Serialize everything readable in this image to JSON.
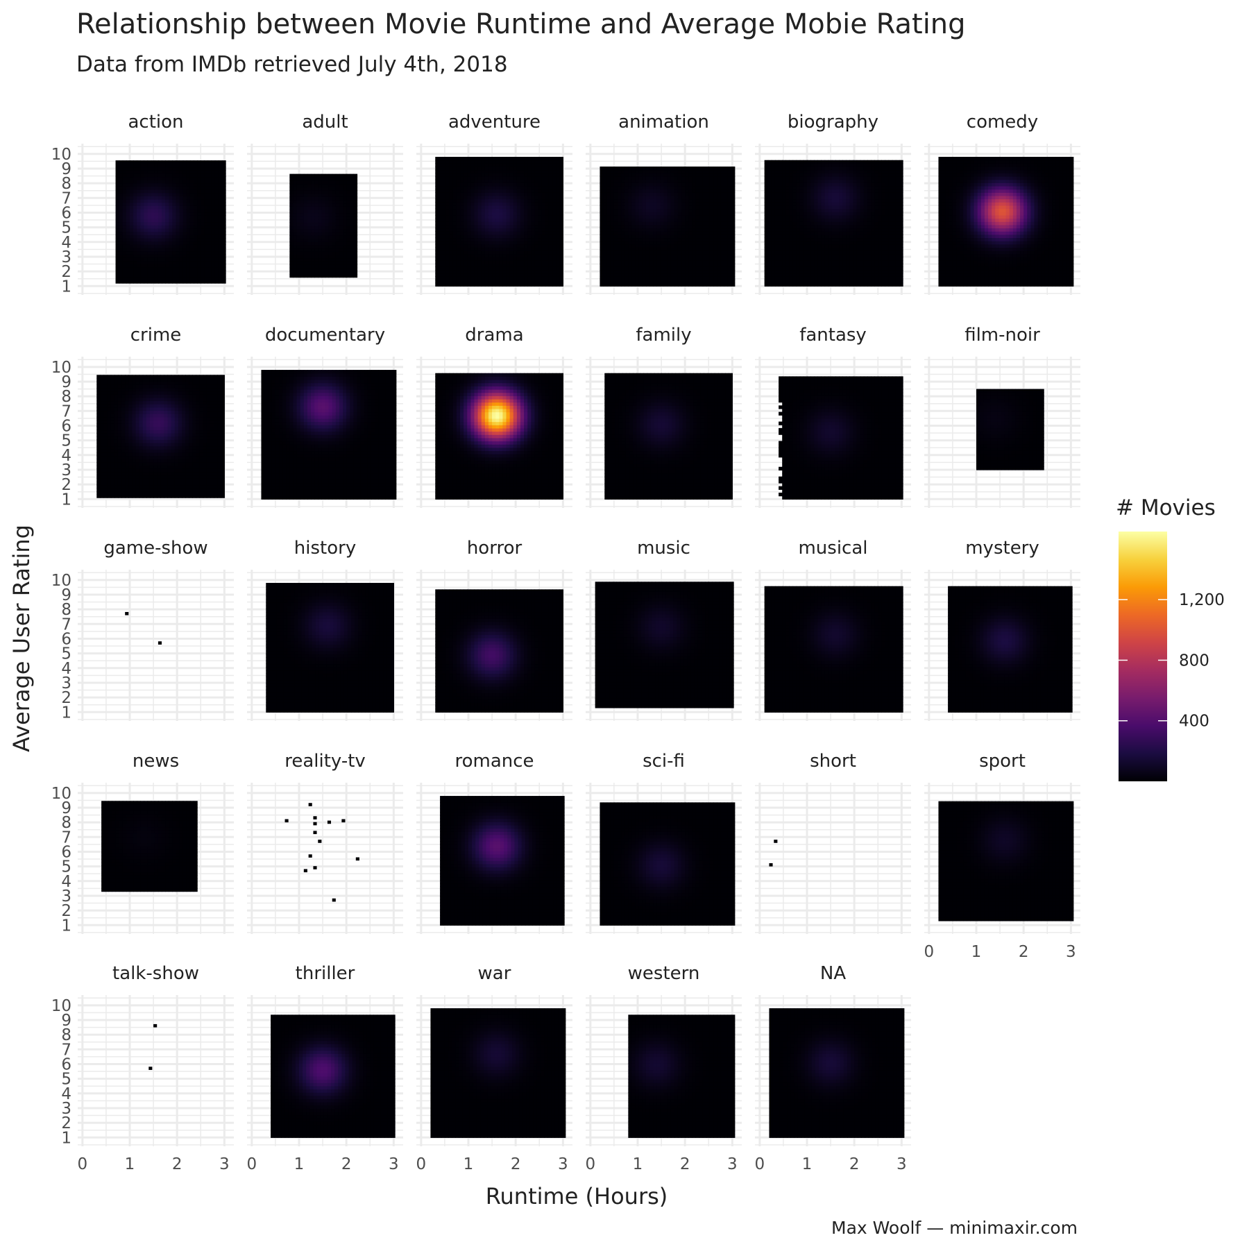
{
  "chart_data": {
    "type": "heatmap",
    "title": "Relationship between Movie Runtime and Average Mobie Rating",
    "subtitle": "Data from IMDb retrieved July 4th, 2018",
    "xlabel": "Runtime (Hours)",
    "ylabel": "Average User Rating",
    "caption": "Max Woolf — minimaxir.com",
    "x_ticks": [
      "0",
      "1",
      "2",
      "3"
    ],
    "y_ticks": [
      "1",
      "2",
      "3",
      "4",
      "5",
      "6",
      "7",
      "8",
      "9",
      "10"
    ],
    "xlim": [
      0,
      3.1
    ],
    "ylim": [
      0.8,
      10.3
    ],
    "legend": {
      "title": "# Movies",
      "ticks": [
        "400",
        "800",
        "1,200"
      ],
      "tick_values": [
        400,
        800,
        1200
      ],
      "range": [
        0,
        1650
      ],
      "position": "right"
    },
    "colors": [
      "#000004",
      "#1b0c41",
      "#4a0c6b",
      "#781c6d",
      "#a52c60",
      "#cf4446",
      "#ed6925",
      "#fb9b06",
      "#f7d13d",
      "#fcffa4"
    ],
    "facets": [
      {
        "name": "action",
        "x": [
          0.7,
          3.0
        ],
        "y": [
          1.2,
          9.4
        ],
        "peak": 250,
        "peak_x": 1.5,
        "peak_y": 5.8,
        "density": 0.95
      },
      {
        "name": "adult",
        "x": [
          0.8,
          2.2
        ],
        "y": [
          1.6,
          8.6
        ],
        "peak": 60,
        "peak_x": 1.3,
        "peak_y": 5.7,
        "density": 0.7
      },
      {
        "name": "adventure",
        "x": [
          0.3,
          3.0
        ],
        "y": [
          1.0,
          9.6
        ],
        "peak": 180,
        "peak_x": 1.6,
        "peak_y": 5.9,
        "density": 0.9
      },
      {
        "name": "animation",
        "x": [
          0.2,
          3.0
        ],
        "y": [
          1.0,
          9.0
        ],
        "peak": 90,
        "peak_x": 1.3,
        "peak_y": 6.5,
        "density": 0.72
      },
      {
        "name": "biography",
        "x": [
          0.1,
          3.0
        ],
        "y": [
          1.0,
          9.5
        ],
        "peak": 150,
        "peak_x": 1.6,
        "peak_y": 7.0,
        "density": 0.85
      },
      {
        "name": "comedy",
        "x": [
          0.2,
          3.0
        ],
        "y": [
          1.0,
          9.6
        ],
        "peak": 1000,
        "peak_x": 1.55,
        "peak_y": 6.1,
        "density": 0.95
      },
      {
        "name": "crime",
        "x": [
          0.3,
          3.0
        ],
        "y": [
          1.1,
          9.3
        ],
        "peak": 280,
        "peak_x": 1.6,
        "peak_y": 6.2,
        "density": 0.93
      },
      {
        "name": "documentary",
        "x": [
          0.2,
          3.0
        ],
        "y": [
          1.0,
          9.8
        ],
        "peak": 420,
        "peak_x": 1.5,
        "peak_y": 7.3,
        "density": 0.88
      },
      {
        "name": "drama",
        "x": [
          0.3,
          3.0
        ],
        "y": [
          1.0,
          9.5
        ],
        "peak": 1650,
        "peak_x": 1.6,
        "peak_y": 6.7,
        "density": 0.97
      },
      {
        "name": "family",
        "x": [
          0.3,
          3.0
        ],
        "y": [
          1.0,
          9.4
        ],
        "peak": 140,
        "peak_x": 1.5,
        "peak_y": 6.1,
        "density": 0.85
      },
      {
        "name": "fantasy",
        "x": [
          0.4,
          3.0
        ],
        "y": [
          1.0,
          9.3
        ],
        "peak": 120,
        "peak_x": 1.5,
        "peak_y": 5.6,
        "density": 0.82
      },
      {
        "name": "film-noir",
        "x": [
          1.0,
          2.4
        ],
        "y": [
          3.0,
          8.4
        ],
        "peak": 40,
        "peak_x": 1.4,
        "peak_y": 6.5,
        "density": 0.85
      },
      {
        "name": "game-show",
        "x": [
          0.9,
          1.7
        ],
        "y": [
          5.4,
          7.6
        ],
        "peak": 2,
        "peak_x": 1.2,
        "peak_y": 6.5,
        "density": 0.0
      },
      {
        "name": "history",
        "x": [
          0.3,
          3.0
        ],
        "y": [
          1.0,
          9.7
        ],
        "peak": 160,
        "peak_x": 1.6,
        "peak_y": 6.9,
        "density": 0.85
      },
      {
        "name": "horror",
        "x": [
          0.3,
          3.0
        ],
        "y": [
          1.0,
          9.2
        ],
        "peak": 330,
        "peak_x": 1.5,
        "peak_y": 4.9,
        "density": 0.93
      },
      {
        "name": "music",
        "x": [
          0.1,
          3.0
        ],
        "y": [
          1.3,
          9.7
        ],
        "peak": 110,
        "peak_x": 1.5,
        "peak_y": 6.8,
        "density": 0.82
      },
      {
        "name": "musical",
        "x": [
          0.1,
          3.0
        ],
        "y": [
          1.0,
          9.4
        ],
        "peak": 120,
        "peak_x": 1.6,
        "peak_y": 6.3,
        "density": 0.84
      },
      {
        "name": "mystery",
        "x": [
          0.4,
          3.0
        ],
        "y": [
          1.0,
          9.4
        ],
        "peak": 180,
        "peak_x": 1.6,
        "peak_y": 5.9,
        "density": 0.86
      },
      {
        "name": "news",
        "x": [
          0.4,
          2.4
        ],
        "y": [
          3.3,
          9.3
        ],
        "peak": 25,
        "peak_x": 1.3,
        "peak_y": 7.0,
        "density": 0.75
      },
      {
        "name": "reality-tv",
        "x": [
          0.6,
          2.2
        ],
        "y": [
          2.4,
          9.0
        ],
        "peak": 3,
        "peak_x": 1.2,
        "peak_y": 6.0,
        "density": 0.0
      },
      {
        "name": "romance",
        "x": [
          0.4,
          3.0
        ],
        "y": [
          1.0,
          9.6
        ],
        "peak": 420,
        "peak_x": 1.6,
        "peak_y": 6.4,
        "density": 0.93
      },
      {
        "name": "sci-fi",
        "x": [
          0.2,
          3.0
        ],
        "y": [
          1.0,
          9.2
        ],
        "peak": 150,
        "peak_x": 1.5,
        "peak_y": 5.1,
        "density": 0.86
      },
      {
        "name": "short",
        "x": [
          0.2,
          0.5
        ],
        "y": [
          5.0,
          6.6
        ],
        "peak": 1,
        "peak_x": 0.3,
        "peak_y": 6.0,
        "density": 0.0
      },
      {
        "name": "sport",
        "x": [
          0.2,
          3.0
        ],
        "y": [
          1.3,
          9.3
        ],
        "peak": 100,
        "peak_x": 1.6,
        "peak_y": 6.8,
        "density": 0.8
      },
      {
        "name": "talk-show",
        "x": [
          1.3,
          1.6
        ],
        "y": [
          5.5,
          8.5
        ],
        "peak": 1,
        "peak_x": 1.5,
        "peak_y": 7.0,
        "density": 0.0
      },
      {
        "name": "thriller",
        "x": [
          0.4,
          3.0
        ],
        "y": [
          1.0,
          9.3
        ],
        "peak": 380,
        "peak_x": 1.5,
        "peak_y": 5.6,
        "density": 0.95
      },
      {
        "name": "war",
        "x": [
          0.2,
          3.0
        ],
        "y": [
          1.0,
          9.7
        ],
        "peak": 140,
        "peak_x": 1.6,
        "peak_y": 6.7,
        "density": 0.86
      },
      {
        "name": "western",
        "x": [
          0.8,
          3.0
        ],
        "y": [
          1.0,
          9.2
        ],
        "peak": 130,
        "peak_x": 1.4,
        "peak_y": 6.0,
        "density": 0.86
      },
      {
        "name": "NA",
        "x": [
          0.2,
          3.0
        ],
        "y": [
          1.0,
          9.6
        ],
        "peak": 150,
        "peak_x": 1.5,
        "peak_y": 6.1,
        "density": 0.85
      }
    ],
    "sparse_points": {
      "game-show": [
        [
          0.9,
          7.6
        ],
        [
          1.6,
          5.6
        ]
      ],
      "reality-tv": [
        [
          0.7,
          8.0
        ],
        [
          1.2,
          9.1
        ],
        [
          1.3,
          8.2
        ],
        [
          1.6,
          7.9
        ],
        [
          1.3,
          7.2
        ],
        [
          1.4,
          6.6
        ],
        [
          1.2,
          5.6
        ],
        [
          1.1,
          4.6
        ],
        [
          1.3,
          4.8
        ],
        [
          2.2,
          5.4
        ],
        [
          1.7,
          2.6
        ],
        [
          1.9,
          8.0
        ],
        [
          1.3,
          7.8
        ]
      ],
      "short": [
        [
          0.3,
          6.6
        ],
        [
          0.2,
          5.0
        ]
      ],
      "talk-show": [
        [
          1.5,
          8.5
        ],
        [
          1.4,
          5.6
        ]
      ]
    }
  }
}
